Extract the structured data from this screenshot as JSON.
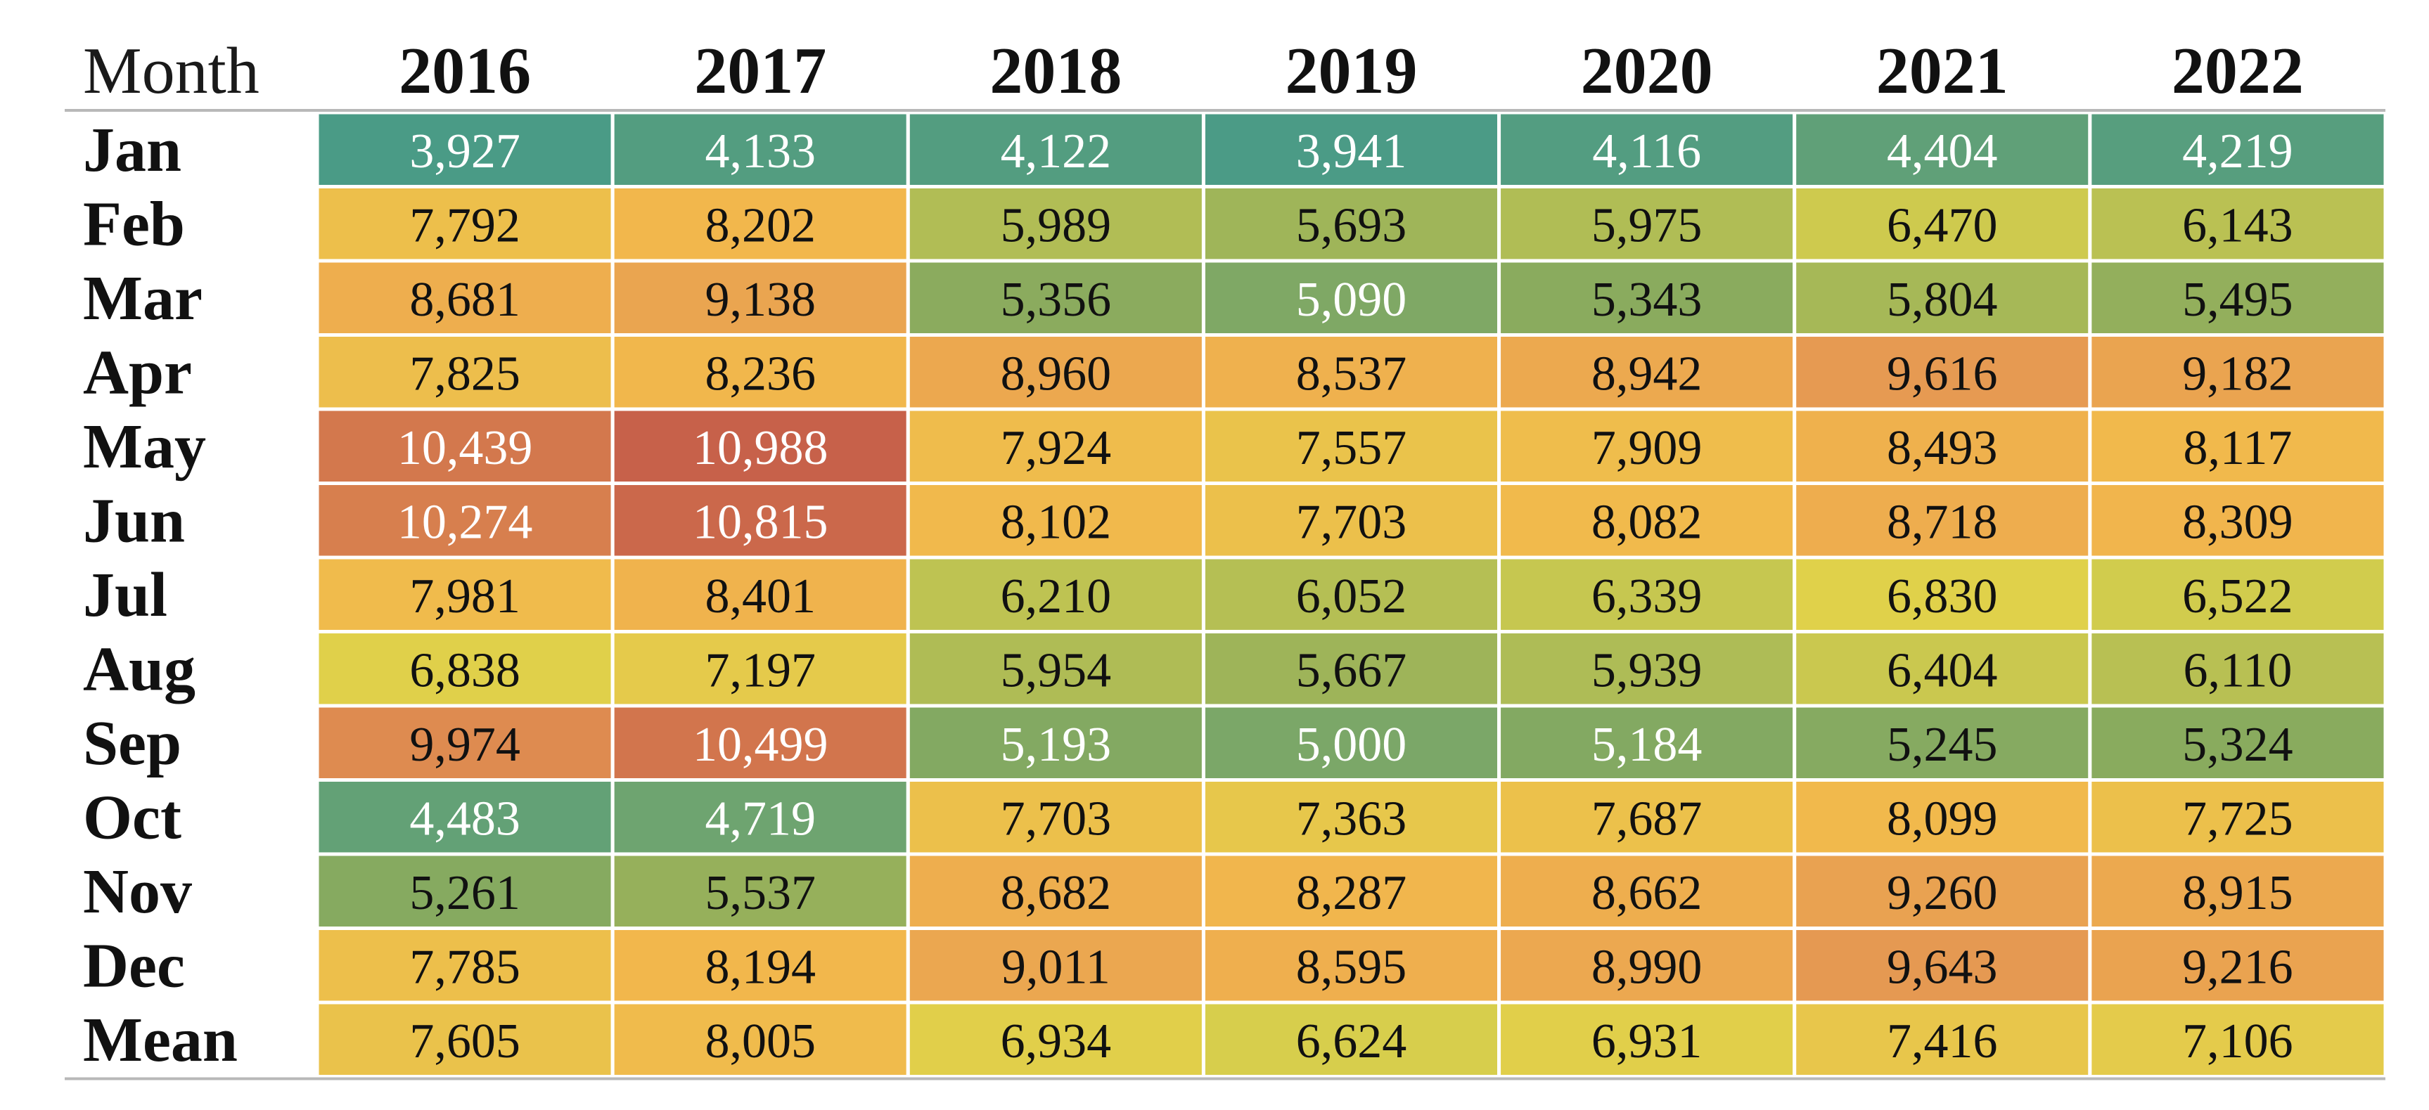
{
  "chart_data": {
    "type": "heatmap",
    "title": "",
    "corner_label": "Month",
    "columns": [
      "2016",
      "2017",
      "2018",
      "2019",
      "2020",
      "2021",
      "2022"
    ],
    "rows": [
      "Jan",
      "Feb",
      "Mar",
      "Apr",
      "May",
      "Jun",
      "Jul",
      "Aug",
      "Sep",
      "Oct",
      "Nov",
      "Dec",
      "Mean"
    ],
    "values": [
      [
        3927,
        4133,
        4122,
        3941,
        4116,
        4404,
        4219
      ],
      [
        7792,
        8202,
        5989,
        5693,
        5975,
        6470,
        6143
      ],
      [
        8681,
        9138,
        5356,
        5090,
        5343,
        5804,
        5495
      ],
      [
        7825,
        8236,
        8960,
        8537,
        8942,
        9616,
        9182
      ],
      [
        10439,
        10988,
        7924,
        7557,
        7909,
        8493,
        8117
      ],
      [
        10274,
        10815,
        8102,
        7703,
        8082,
        8718,
        8309
      ],
      [
        7981,
        8401,
        6210,
        6052,
        6339,
        6830,
        6522
      ],
      [
        6838,
        7197,
        5954,
        5667,
        5939,
        6404,
        6110
      ],
      [
        9974,
        10499,
        5193,
        5000,
        5184,
        5245,
        5324
      ],
      [
        4483,
        4719,
        7703,
        7363,
        7687,
        8099,
        7725
      ],
      [
        5261,
        5537,
        8682,
        8287,
        8662,
        9260,
        8915
      ],
      [
        7785,
        8194,
        9011,
        8595,
        8990,
        9643,
        9216
      ],
      [
        7605,
        8005,
        6934,
        6624,
        6931,
        7416,
        7106
      ]
    ],
    "value_range": [
      3927,
      10988
    ],
    "colormap": [
      "#4a9b86",
      "#8aab5e",
      "#dfd24a",
      "#f2b84c",
      "#e79c52",
      "#c7614a"
    ],
    "number_format": "thousands-comma"
  }
}
